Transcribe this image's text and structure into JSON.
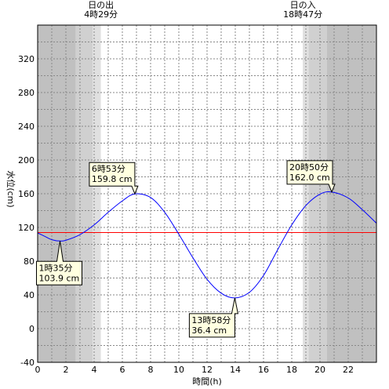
{
  "chart_data": {
    "type": "line",
    "xlabel": "時間(h)",
    "ylabel": "水位(cm)",
    "xlim": [
      0,
      24
    ],
    "ylim": [
      -40,
      360
    ],
    "x_ticks": [
      "0",
      "2",
      "4",
      "6",
      "8",
      "10",
      "12",
      "14",
      "16",
      "18",
      "20",
      "22"
    ],
    "y_ticks": [
      "-40",
      "0",
      "40",
      "80",
      "120",
      "160",
      "200",
      "240",
      "280",
      "320"
    ],
    "grid": true,
    "sunrise": {
      "label": "日の出",
      "time": "4時29分",
      "hour": 4.483
    },
    "sunset": {
      "label": "日の入",
      "time": "18時47分",
      "hour": 18.783
    },
    "twilight_hours": [
      2.7,
      3.9,
      19.2,
      20.5
    ],
    "reference_line": {
      "value": 114,
      "color": "#ff0000"
    },
    "series": [
      {
        "color": "#0000ff",
        "x": [
          0,
          0.5,
          1,
          1.5833,
          2,
          3,
          4,
          5,
          6,
          6.8833,
          8,
          9,
          10,
          11,
          12,
          13,
          13.9667,
          15,
          16,
          17,
          18,
          19,
          20,
          20.8333,
          22,
          23,
          24
        ],
        "y": [
          113.5,
          109.5,
          105.5,
          103.9,
          104.8,
          111.5,
          123,
          138,
          151.5,
          159.8,
          155.5,
          138,
          112,
          84,
          58.5,
          42,
          36.4,
          43,
          63,
          93.5,
          123,
          146,
          159.5,
          162.0,
          155,
          141,
          125
        ]
      }
    ],
    "annotations": [
      {
        "time": "1時35分",
        "value": "103.9 cm",
        "x": 1.5833,
        "y": 103.9
      },
      {
        "time": "6時53分",
        "value": "159.8 cm",
        "x": 6.8833,
        "y": 159.8
      },
      {
        "time": "13時58分",
        "value": "36.4 cm",
        "x": 13.9667,
        "y": 36.4
      },
      {
        "time": "20時50分",
        "value": "162.0 cm",
        "x": 20.8333,
        "y": 162.0
      }
    ],
    "colors": {
      "night": "#c0c0c0",
      "twilight": "#e0e0e0",
      "day": "#ffffff",
      "callout": "#ffffe0"
    }
  }
}
